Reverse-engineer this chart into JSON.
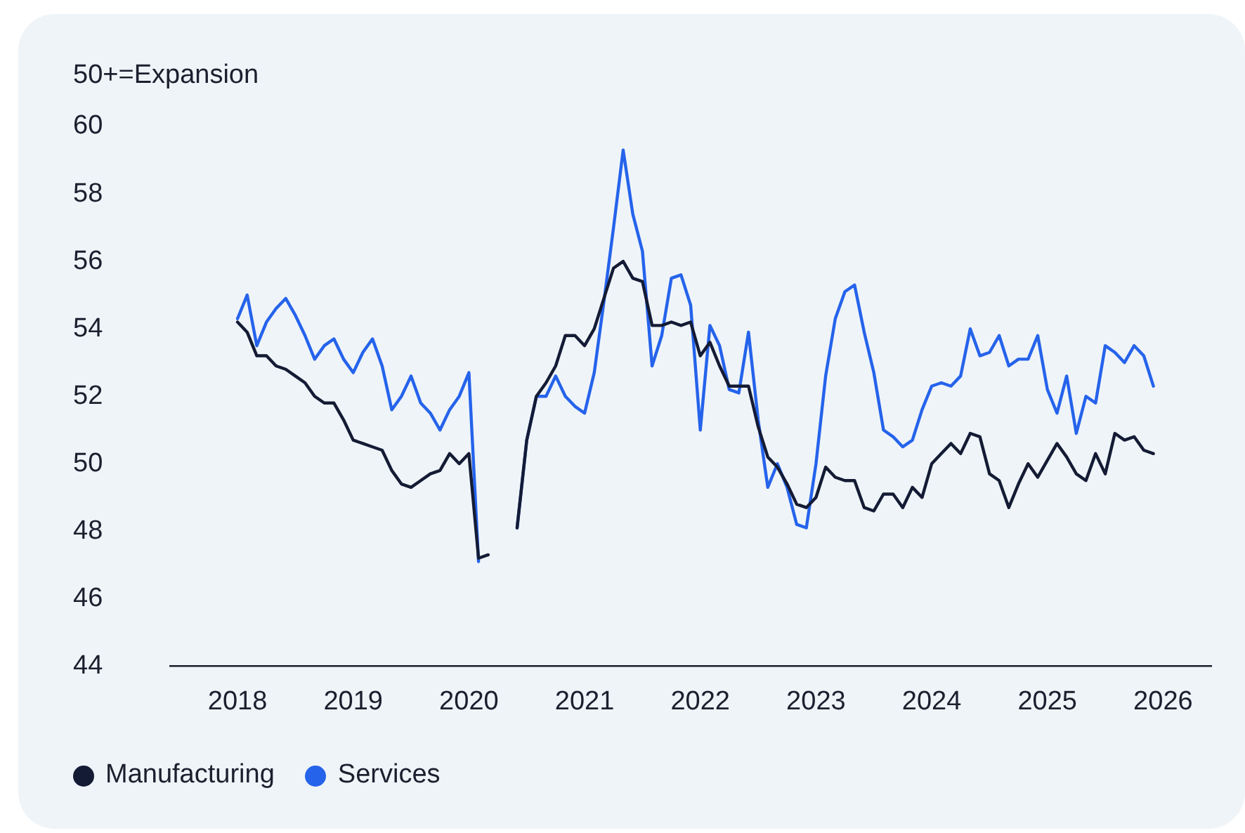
{
  "chart_data": {
    "type": "line",
    "ylabel": "50+=Expansion",
    "x": [
      "2018-01",
      "2018-02",
      "2018-03",
      "2018-04",
      "2018-05",
      "2018-06",
      "2018-07",
      "2018-08",
      "2018-09",
      "2018-10",
      "2018-11",
      "2018-12",
      "2019-01",
      "2019-02",
      "2019-03",
      "2019-04",
      "2019-05",
      "2019-06",
      "2019-07",
      "2019-08",
      "2019-09",
      "2019-10",
      "2019-11",
      "2019-12",
      "2020-01",
      "2020-02",
      "2020-03",
      "2020-04",
      "2020-05",
      "2020-06",
      "2020-07",
      "2020-08",
      "2020-09",
      "2020-10",
      "2020-11",
      "2020-12",
      "2021-01",
      "2021-02",
      "2021-03",
      "2021-04",
      "2021-05",
      "2021-06",
      "2021-07",
      "2021-08",
      "2021-09",
      "2021-10",
      "2021-11",
      "2021-12",
      "2022-01",
      "2022-02",
      "2022-03",
      "2022-04",
      "2022-05",
      "2022-06",
      "2022-07",
      "2022-08",
      "2022-09",
      "2022-10",
      "2022-11",
      "2022-12",
      "2023-01",
      "2023-02",
      "2023-03",
      "2023-04",
      "2023-05",
      "2023-06",
      "2023-07",
      "2023-08",
      "2023-09",
      "2023-10",
      "2023-11",
      "2023-12",
      "2024-01",
      "2024-02",
      "2024-03",
      "2024-04",
      "2024-05",
      "2024-06",
      "2024-07",
      "2024-08",
      "2024-09",
      "2024-10",
      "2024-11",
      "2024-12",
      "2025-01",
      "2025-02",
      "2025-03",
      "2025-04",
      "2025-05",
      "2025-06",
      "2025-07",
      "2025-08",
      "2025-09",
      "2025-10",
      "2025-11",
      "2025-12"
    ],
    "series": [
      {
        "name": "Manufacturing",
        "color": "#141b34",
        "values": [
          54.2,
          53.9,
          53.2,
          53.2,
          52.9,
          52.8,
          52.6,
          52.4,
          52.0,
          51.8,
          51.8,
          51.3,
          50.7,
          50.6,
          50.5,
          50.4,
          49.8,
          49.4,
          49.3,
          49.5,
          49.7,
          49.8,
          50.3,
          50.0,
          50.3,
          47.2,
          47.3,
          null,
          null,
          48.1,
          50.7,
          52.0,
          52.4,
          52.9,
          53.8,
          53.8,
          53.5,
          54.0,
          54.9,
          55.8,
          56.0,
          55.5,
          55.4,
          54.1,
          54.1,
          54.2,
          54.1,
          54.2,
          53.2,
          53.6,
          52.9,
          52.3,
          52.3,
          52.3,
          51.1,
          50.2,
          49.9,
          49.4,
          48.8,
          48.7,
          49.0,
          49.9,
          49.6,
          49.5,
          49.5,
          48.7,
          48.6,
          49.1,
          49.1,
          48.7,
          49.3,
          49.0,
          50.0,
          50.3,
          50.6,
          50.3,
          50.9,
          50.8,
          49.7,
          49.5,
          48.7,
          49.4,
          50.0,
          49.6,
          50.1,
          50.6,
          50.2,
          49.7,
          49.5,
          50.3,
          49.7,
          50.9,
          50.7,
          50.8,
          50.4,
          50.3
        ]
      },
      {
        "name": "Services",
        "color": "#2563eb",
        "values": [
          54.3,
          55.0,
          53.5,
          54.2,
          54.6,
          54.9,
          54.4,
          53.8,
          53.1,
          53.5,
          53.7,
          53.1,
          52.7,
          53.3,
          53.7,
          52.9,
          51.6,
          52.0,
          52.6,
          51.8,
          51.5,
          51.0,
          51.6,
          52.0,
          52.7,
          47.1,
          null,
          null,
          null,
          48.1,
          50.7,
          52.0,
          52.0,
          52.6,
          52.0,
          51.7,
          51.5,
          52.7,
          54.8,
          57.0,
          59.3,
          57.4,
          56.3,
          52.9,
          53.8,
          55.5,
          55.6,
          54.7,
          51.0,
          54.1,
          53.5,
          52.2,
          52.1,
          53.9,
          51.3,
          49.3,
          50.0,
          49.3,
          48.2,
          48.1,
          50.0,
          52.6,
          54.3,
          55.1,
          55.3,
          53.9,
          52.7,
          51.0,
          50.8,
          50.5,
          50.7,
          51.6,
          52.3,
          52.4,
          52.3,
          52.6,
          54.0,
          53.2,
          53.3,
          53.8,
          52.9,
          53.1,
          53.1,
          53.8,
          52.2,
          51.5,
          52.6,
          50.9,
          52.0,
          51.8,
          53.5,
          53.3,
          53.0,
          53.5,
          53.2,
          52.3
        ]
      }
    ],
    "xlim": [
      "2017-06",
      "2026-06"
    ],
    "xticks": [
      "2018",
      "2019",
      "2020",
      "2021",
      "2022",
      "2023",
      "2024",
      "2025",
      "2026"
    ],
    "ylim": [
      44,
      60
    ],
    "yticks": [
      44,
      46,
      48,
      50,
      52,
      54,
      56,
      58,
      60
    ],
    "legend": "bottom left",
    "marker": "none",
    "line_style": "solid"
  }
}
